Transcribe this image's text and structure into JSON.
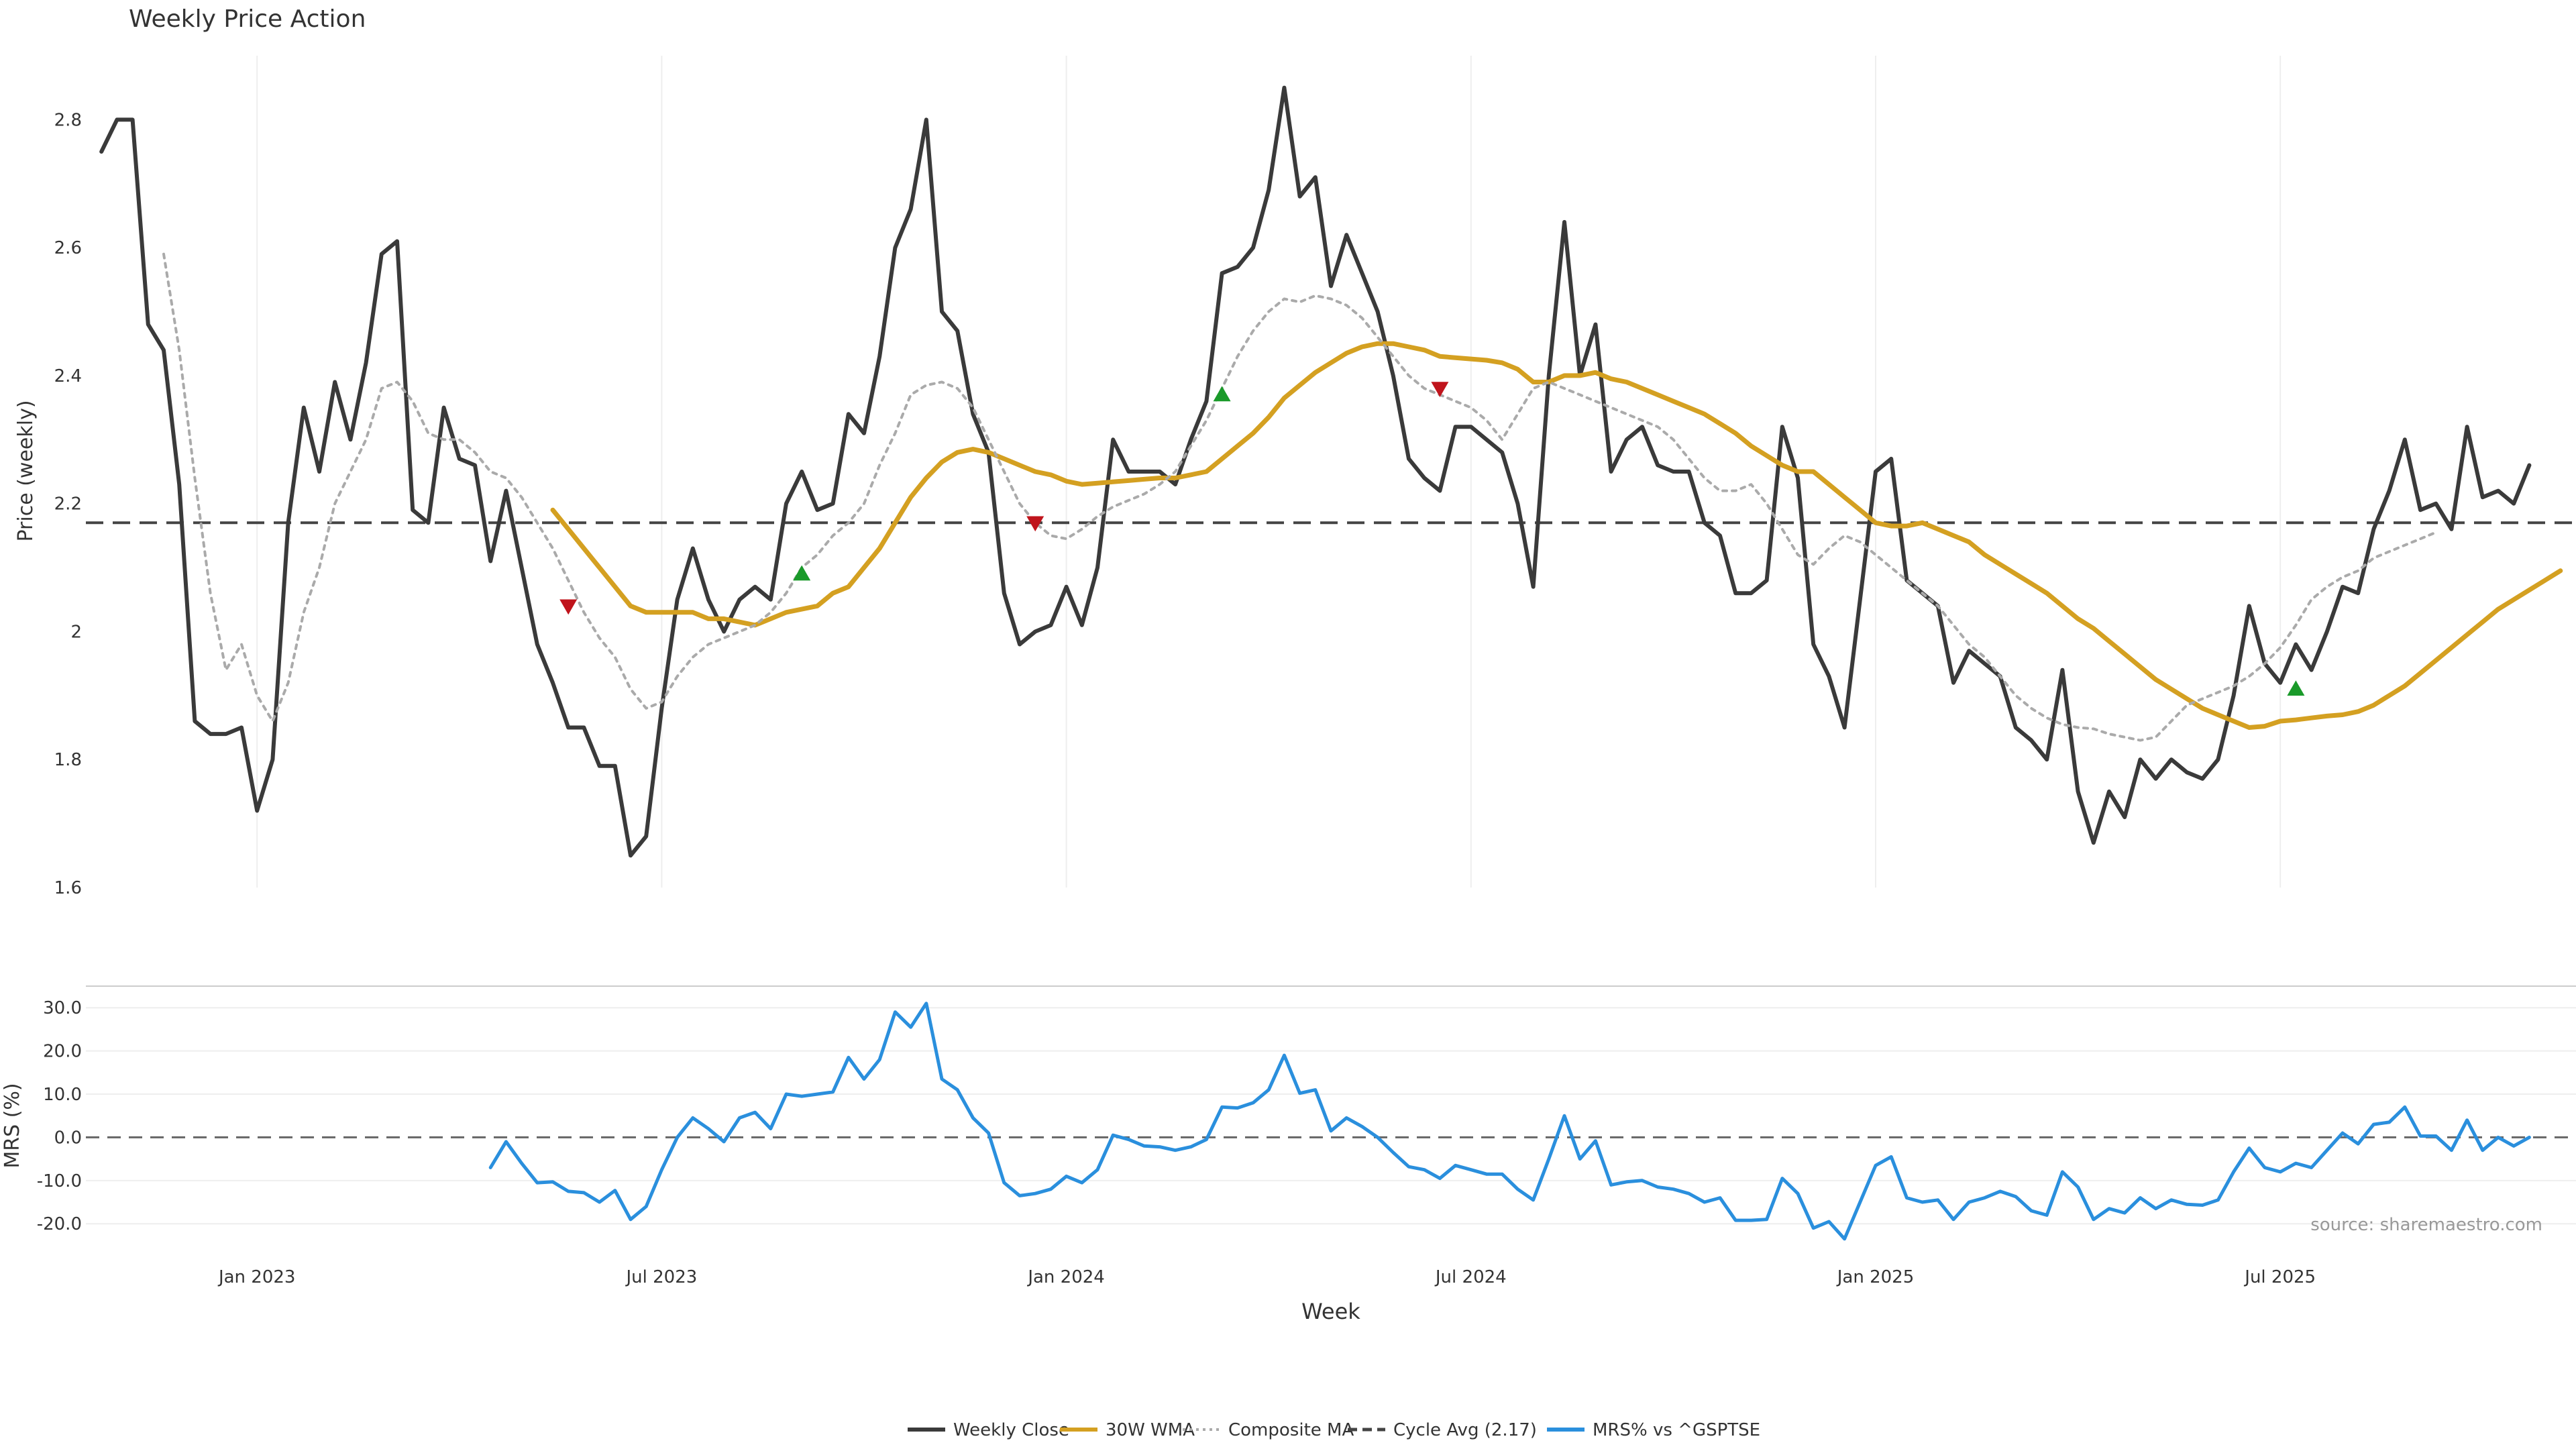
{
  "chart_data": {
    "type": "line",
    "title": "Weekly Price Action",
    "xlabel": "Week",
    "x_ticks": [
      "Jan 2023",
      "Jul 2023",
      "Jan 2024",
      "Jul 2024",
      "Jan 2025",
      "Jul 2025"
    ],
    "x_tick_weeks": [
      11,
      37,
      63,
      89,
      115,
      141
    ],
    "weeks_count": 157,
    "price_panel": {
      "ylabel": "Price (weekly)",
      "ylim": [
        1.6,
        2.9
      ],
      "y_ticks": [
        1.6,
        1.8,
        2.0,
        2.2,
        2.4,
        2.6,
        2.8
      ],
      "y_tick_labels": [
        "1.6",
        "1.8",
        "2",
        "2.2",
        "2.4",
        "2.6",
        "2.8"
      ],
      "grid": "x-only",
      "cycle_avg": 2.17,
      "series": [
        {
          "name": "Weekly Close",
          "color": "#3a3a3a",
          "style": "solid",
          "start_week": 1,
          "values": [
            2.75,
            2.8,
            2.8,
            2.48,
            2.44,
            2.23,
            1.86,
            1.84,
            1.84,
            1.85,
            1.72,
            1.8,
            2.17,
            2.35,
            2.25,
            2.39,
            2.3,
            2.42,
            2.59,
            2.61,
            2.19,
            2.17,
            2.35,
            2.27,
            2.26,
            2.11,
            2.22,
            2.1,
            1.98,
            1.92,
            1.85,
            1.85,
            1.79,
            1.79,
            1.65,
            1.68,
            1.88,
            2.05,
            2.13,
            2.05,
            2.0,
            2.05,
            2.07,
            2.05,
            2.2,
            2.25,
            2.19,
            2.2,
            2.34,
            2.31,
            2.43,
            2.6,
            2.66,
            2.8,
            2.5,
            2.47,
            2.34,
            2.28,
            2.06,
            1.98,
            2.0,
            2.01,
            2.07,
            2.01,
            2.1,
            2.3,
            2.25,
            2.25,
            2.25,
            2.23,
            2.3,
            2.36,
            2.56,
            2.57,
            2.6,
            2.69,
            2.85,
            2.68,
            2.71,
            2.54,
            2.62,
            2.56,
            2.5,
            2.4,
            2.27,
            2.24,
            2.22,
            2.32,
            2.32,
            2.3,
            2.28,
            2.2,
            2.07,
            2.4,
            2.64,
            2.4,
            2.48,
            2.25,
            2.3,
            2.32,
            2.26,
            2.25,
            2.25,
            2.17,
            2.15,
            2.06,
            2.06,
            2.08,
            2.32,
            2.24,
            1.98,
            1.93,
            1.85,
            2.05,
            2.25,
            2.27,
            2.08,
            2.06,
            2.04,
            1.92,
            1.97,
            1.95,
            1.93,
            1.85,
            1.83,
            1.8,
            1.94,
            1.75,
            1.67,
            1.75,
            1.71,
            1.8,
            1.77,
            1.8,
            1.78,
            1.77,
            1.8,
            1.9,
            2.04,
            1.95,
            1.92,
            1.98,
            1.94,
            2.0,
            2.07,
            2.06,
            2.16,
            2.22,
            2.3,
            2.19,
            2.2,
            2.16,
            2.32,
            2.21,
            2.22,
            2.2,
            2.26
          ]
        },
        {
          "name": "30W WMA",
          "color": "#d4a021",
          "style": "solid",
          "start_week": 30,
          "values": [
            2.19,
            2.16,
            2.13,
            2.1,
            2.07,
            2.04,
            2.03,
            2.03,
            2.03,
            2.03,
            2.02,
            2.02,
            2.015,
            2.01,
            2.02,
            2.03,
            2.035,
            2.04,
            2.06,
            2.07,
            2.1,
            2.13,
            2.17,
            2.21,
            2.24,
            2.265,
            2.28,
            2.285,
            2.28,
            2.27,
            2.26,
            2.25,
            2.245,
            2.235,
            2.23,
            2.232,
            2.234,
            2.236,
            2.238,
            2.24,
            2.24,
            2.245,
            2.25,
            2.27,
            2.29,
            2.31,
            2.335,
            2.365,
            2.385,
            2.405,
            2.42,
            2.435,
            2.445,
            2.45,
            2.45,
            2.445,
            2.44,
            2.43,
            2.428,
            2.426,
            2.424,
            2.42,
            2.41,
            2.39,
            2.39,
            2.4,
            2.4,
            2.405,
            2.395,
            2.39,
            2.38,
            2.37,
            2.36,
            2.35,
            2.34,
            2.325,
            2.31,
            2.29,
            2.275,
            2.26,
            2.25,
            2.25,
            2.23,
            2.21,
            2.19,
            2.17,
            2.165,
            2.165,
            2.17,
            2.16,
            2.15,
            2.14,
            2.12,
            2.105,
            2.09,
            2.075,
            2.06,
            2.04,
            2.02,
            2.005,
            1.985,
            1.965,
            1.945,
            1.925,
            1.91,
            1.895,
            1.88,
            1.87,
            1.86,
            1.85,
            1.852,
            1.86,
            1.862,
            1.865,
            1.868,
            1.87,
            1.875,
            1.885,
            1.9,
            1.915,
            1.935,
            1.955,
            1.975,
            1.995,
            2.015,
            2.035,
            2.05,
            2.065,
            2.08,
            2.095
          ]
        },
        {
          "name": "Composite MA",
          "color": "#aaaaaa",
          "style": "dotted",
          "start_week": 5,
          "values": [
            2.59,
            2.44,
            2.24,
            2.06,
            1.94,
            1.98,
            1.9,
            1.86,
            1.92,
            2.03,
            2.1,
            2.2,
            2.25,
            2.3,
            2.38,
            2.39,
            2.36,
            2.31,
            2.3,
            2.3,
            2.28,
            2.25,
            2.24,
            2.21,
            2.17,
            2.13,
            2.08,
            2.03,
            1.99,
            1.96,
            1.91,
            1.88,
            1.89,
            1.93,
            1.96,
            1.98,
            1.99,
            2.0,
            2.01,
            2.03,
            2.06,
            2.1,
            2.12,
            2.15,
            2.17,
            2.2,
            2.26,
            2.31,
            2.37,
            2.385,
            2.39,
            2.38,
            2.35,
            2.3,
            2.25,
            2.2,
            2.17,
            2.15,
            2.145,
            2.16,
            2.18,
            2.195,
            2.205,
            2.215,
            2.23,
            2.25,
            2.29,
            2.33,
            2.38,
            2.43,
            2.47,
            2.5,
            2.52,
            2.515,
            2.525,
            2.52,
            2.51,
            2.49,
            2.46,
            2.43,
            2.4,
            2.38,
            2.37,
            2.36,
            2.35,
            2.33,
            2.3,
            2.34,
            2.38,
            2.39,
            2.38,
            2.37,
            2.36,
            2.35,
            2.34,
            2.33,
            2.32,
            2.3,
            2.27,
            2.24,
            2.22,
            2.22,
            2.23,
            2.2,
            2.16,
            2.12,
            2.105,
            2.13,
            2.15,
            2.14,
            2.12,
            2.1,
            2.08,
            2.06,
            2.04,
            2.01,
            1.98,
            1.96,
            1.93,
            1.9,
            1.88,
            1.865,
            1.855,
            1.85,
            1.848,
            1.84,
            1.835,
            1.83,
            1.835,
            1.86,
            1.885,
            1.895,
            1.905,
            1.915,
            1.93,
            1.95,
            1.975,
            2.01,
            2.05,
            2.07,
            2.085,
            2.095,
            2.115,
            2.125,
            2.135,
            2.145,
            2.155
          ]
        },
        {
          "name": "Cycle Avg (2.17)",
          "color": "#444444",
          "style": "dashed",
          "constant": 2.17
        }
      ],
      "markers": [
        {
          "type": "sell",
          "week": 31,
          "value": 2.04,
          "color": "#c0141c"
        },
        {
          "type": "buy",
          "week": 46,
          "value": 2.09,
          "color": "#1a9a2a"
        },
        {
          "type": "sell",
          "week": 61,
          "value": 2.17,
          "color": "#c0141c"
        },
        {
          "type": "buy",
          "week": 73,
          "value": 2.37,
          "color": "#1a9a2a"
        },
        {
          "type": "sell",
          "week": 87,
          "value": 2.38,
          "color": "#c0141c"
        },
        {
          "type": "buy",
          "week": 142,
          "value": 1.91,
          "color": "#1a9a2a"
        }
      ]
    },
    "mrs_panel": {
      "ylabel": "MRS (%)",
      "ylim": [
        -24,
        35
      ],
      "y_ticks": [
        -20,
        -10,
        0,
        10,
        20,
        30
      ],
      "y_tick_labels": [
        "-20.0",
        "-10.0",
        "0.0",
        "10.0",
        "20.0",
        "30.0"
      ],
      "grid": "y-only",
      "zero_line": 0,
      "series": [
        {
          "name": "MRS% vs ^GSPTSE",
          "color": "#2a8fdd",
          "style": "solid",
          "start_week": 26,
          "values": [
            -7,
            -1,
            -6,
            -10.5,
            -10.3,
            -12.5,
            -12.8,
            -15,
            -12.3,
            -19,
            -16,
            -7.5,
            0,
            4.5,
            2,
            -1,
            4.5,
            5.8,
            2,
            10,
            9.5,
            10,
            10.5,
            18.5,
            13.5,
            18,
            29,
            25.5,
            31,
            13.5,
            11,
            4.5,
            1,
            -10.5,
            -13.5,
            -13,
            -12,
            -9,
            -10.5,
            -7.5,
            0.5,
            -0.5,
            -2,
            -2.2,
            -3,
            -2.2,
            -0.5,
            7,
            6.8,
            8,
            11,
            19,
            10.2,
            11,
            1.5,
            4.5,
            2.5,
            0,
            -3.5,
            -6.8,
            -7.5,
            -9.5,
            -6.5,
            -7.5,
            -8.5,
            -8.5,
            -12,
            -14.5,
            -5,
            5,
            -5,
            -0.8,
            -11,
            -10.3,
            -10,
            -11.5,
            -12,
            -13,
            -15,
            -14,
            -19.2,
            -19.2,
            -19,
            -9.5,
            -13,
            -21,
            -19.5,
            -23.5,
            -15,
            -6.5,
            -4.5,
            -14,
            -15,
            -14.5,
            -19,
            -15,
            -14,
            -12.5,
            -13.7,
            -17,
            -18,
            -8,
            -11.5,
            -19,
            -16.5,
            -17.5,
            -14,
            -16.5,
            -14.5,
            -15.5,
            -15.7,
            -14.5,
            -8,
            -2.5,
            -7,
            -8,
            -6,
            -7,
            -3,
            1,
            -1.5,
            3,
            3.5,
            7,
            0.3,
            0.3,
            -3,
            4,
            -3,
            0,
            -2,
            0
          ]
        }
      ]
    },
    "source": "source: sharemaestro.com",
    "legend": {
      "placement": "bottom-center",
      "items": [
        {
          "label": "Weekly Close",
          "color": "#3a3a3a",
          "style": "solid"
        },
        {
          "label": "30W WMA",
          "color": "#d4a021",
          "style": "solid"
        },
        {
          "label": "Composite MA",
          "color": "#aaaaaa",
          "style": "dotted"
        },
        {
          "label": "Cycle Avg (2.17)",
          "color": "#444444",
          "style": "dashed"
        },
        {
          "label": "MRS% vs ^GSPTSE",
          "color": "#2a8fdd",
          "style": "solid"
        }
      ]
    }
  }
}
